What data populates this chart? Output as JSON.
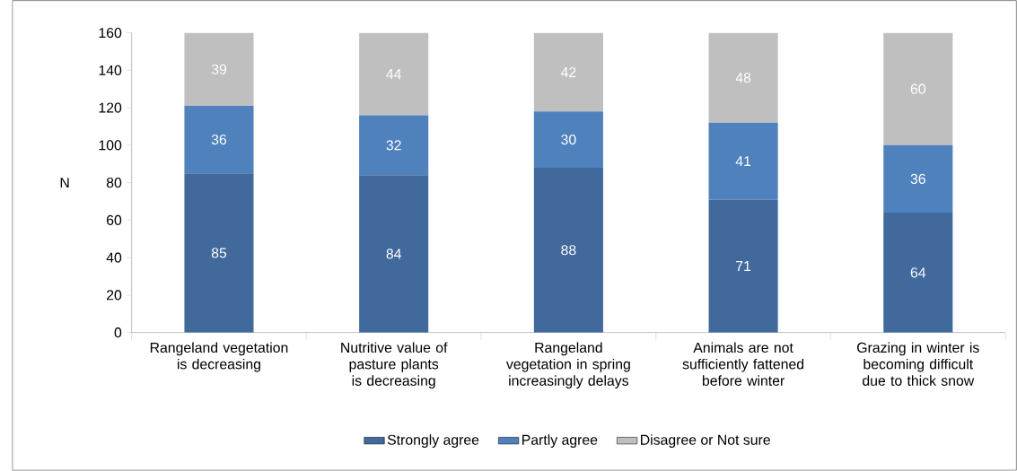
{
  "chart_data": {
    "type": "bar",
    "stacked": true,
    "ylabel": "N",
    "categories": [
      "Rangeland vegetation is decreasing",
      "Nutritive value of pasture plants is decreasing",
      "Rangeland vegetation in spring increasingly delays",
      "Animals are not sufficiently fattened before winter",
      "Grazing in winter is becoming difficult due to thick snow"
    ],
    "series": [
      {
        "name": "Strongly agree",
        "color": "#41699c",
        "values": [
          85,
          84,
          88,
          71,
          64
        ]
      },
      {
        "name": "Partly agree",
        "color": "#4f81bd",
        "values": [
          36,
          32,
          30,
          41,
          36
        ]
      },
      {
        "name": "Disagree or Not sure",
        "color": "#bfbfbf",
        "values": [
          39,
          44,
          42,
          48,
          60
        ]
      }
    ],
    "ylim": [
      0,
      160
    ],
    "yticks": [
      0,
      20,
      40,
      60,
      80,
      100,
      120,
      140,
      160
    ],
    "data_labels": true,
    "legend": "bottom",
    "grid": false
  }
}
